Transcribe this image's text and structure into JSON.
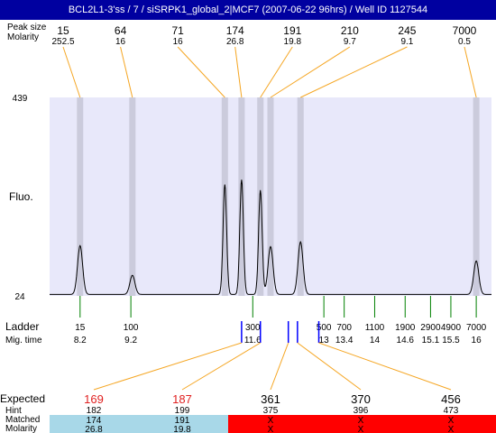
{
  "title": "BCL2L1-3'ss / 7 / siSRPK1_global_2|MCF7 (2007-06-22 96hrs) / Well ID 1127544",
  "row_labels": {
    "peak_size": "Peak size",
    "molarity": "Molarity",
    "fluo": "Fluo.",
    "ladder": "Ladder",
    "mig_time": "Mig. time",
    "expected": "Expected",
    "hint": "Hint",
    "matched": "Matched",
    "molarity_bottom": "Molarity"
  },
  "colors": {
    "title_bg": "#0000a0",
    "plot_bg": "#e8e8fa",
    "peak_band": "#c8c8d8",
    "trace": "#000000",
    "peak_connector": "#f5a623",
    "ladder_tick": "#008000",
    "marker_blue": "#0000ff",
    "expected_red": "#e02020",
    "matched_ok": "#a8d8e8",
    "matched_fail": "#ff0000"
  },
  "chart_data": {
    "type": "line",
    "y_axis": {
      "max_label": "439",
      "min_label": "24",
      "ylim": [
        24,
        439
      ]
    },
    "peaks": [
      {
        "size": "15",
        "molarity": "252.5",
        "mig": 8.2,
        "height": 102
      },
      {
        "size": "64",
        "molarity": "16",
        "mig": 9.23,
        "height": 40
      },
      {
        "size": "71",
        "molarity": "16",
        "mig": 11.05,
        "height": 230
      },
      {
        "size": "174",
        "molarity": "26.8",
        "mig": 11.38,
        "height": 240
      },
      {
        "size": "191",
        "molarity": "19.8",
        "mig": 11.75,
        "height": 218
      },
      {
        "size": "210",
        "molarity": "9.7",
        "mig": 11.95,
        "height": 100
      },
      {
        "size": "245",
        "molarity": "9.1",
        "mig": 12.54,
        "height": 110
      },
      {
        "size": "7000",
        "molarity": "0.5",
        "mig": 16.0,
        "height": 70
      }
    ],
    "ladder": [
      {
        "size": "15",
        "mig": "8.2",
        "pos": 8.2
      },
      {
        "size": "100",
        "mig": "9.2",
        "pos": 9.2
      },
      {
        "size": "300",
        "mig": "11.6",
        "pos": 11.6
      },
      {
        "size": "500",
        "mig": "13",
        "pos": 13.0
      },
      {
        "size": "700",
        "mig": "13.4",
        "pos": 13.4
      },
      {
        "size": "1100",
        "mig": "14",
        "pos": 14.0
      },
      {
        "size": "1900",
        "mig": "14.6",
        "pos": 14.6
      },
      {
        "size": "2900",
        "mig": "15.1",
        "pos": 15.1
      },
      {
        "size": "4900",
        "mig": "15.5",
        "pos": 15.5
      },
      {
        "size": "7000",
        "mig": "16",
        "pos": 16.0
      }
    ],
    "expected": [
      {
        "expected": "169",
        "hint": "182",
        "matched": "174",
        "molarity": "26.8",
        "status": "matched",
        "color": "red",
        "mig": 11.38
      },
      {
        "expected": "187",
        "hint": "199",
        "matched": "191",
        "molarity": "19.8",
        "status": "matched",
        "color": "red",
        "mig": 11.75
      },
      {
        "expected": "361",
        "hint": "375",
        "matched": "X",
        "molarity": "X",
        "status": "failed",
        "color": "black",
        "mig": 12.3
      },
      {
        "expected": "370",
        "hint": "396",
        "matched": "X",
        "molarity": "X",
        "status": "failed",
        "color": "black",
        "mig": 12.48
      },
      {
        "expected": "456",
        "hint": "473",
        "matched": "X",
        "molarity": "X",
        "status": "failed",
        "color": "black",
        "mig": 12.9
      }
    ]
  }
}
